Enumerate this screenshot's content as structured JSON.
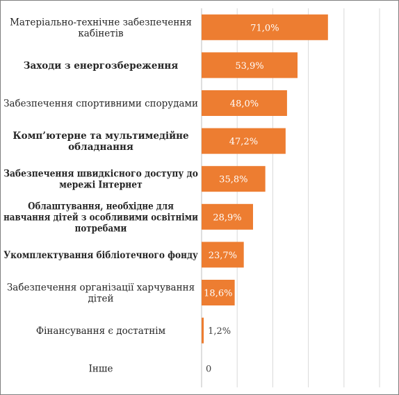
{
  "chart_data": {
    "type": "bar",
    "orientation": "horizontal",
    "categories": [
      [
        "Матеріально-технічне забезпечення",
        "кабінетів"
      ],
      [
        "Заходи з енергозбереження"
      ],
      [
        "Забезпечення спортивними спорудами"
      ],
      [
        "Комп’ютерне та мультимедійне",
        "обладнання"
      ],
      [
        "Забезпечення швидкісного доступу до",
        "мережі Інтернет"
      ],
      [
        "Облаштування, необхідне для",
        "навчання дітей з особливими освітніми",
        "потребами"
      ],
      [
        "Укомплектування бібліотечного фонду"
      ],
      [
        "Забезпечення організації харчування",
        "дітей"
      ],
      [
        "Фінансування є достатнім"
      ],
      [
        "Інше"
      ]
    ],
    "values": [
      71.0,
      53.9,
      48.0,
      47.2,
      35.8,
      28.9,
      23.7,
      18.6,
      1.2,
      0
    ],
    "value_labels": [
      "71,0%",
      "53,9%",
      "48,0%",
      "47,2%",
      "35,8%",
      "28,9%",
      "23,7%",
      "18,6%",
      "1,2%",
      "0"
    ],
    "bold_categories": [
      false,
      true,
      false,
      true,
      true,
      true,
      true,
      false,
      false,
      false
    ],
    "xlim": [
      0,
      107
    ],
    "grid": true,
    "legend": "none",
    "colors": {
      "bar": "#ED7D31",
      "grid": "#d9d9d9",
      "label_on_bar": "#ffffff",
      "label_outside": "#404040",
      "frame": "#7f7f7f"
    }
  }
}
